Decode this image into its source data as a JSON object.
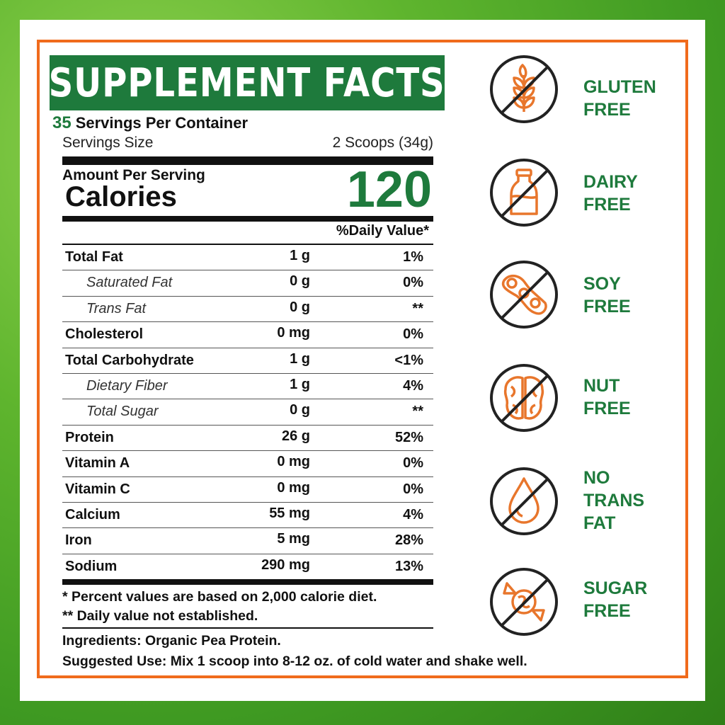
{
  "facts": {
    "title": "SUPPLEMENT FACTS",
    "servings_count": "35",
    "servings_per_container": "Servings Per Container",
    "serving_size_label": "Servings Size",
    "serving_size_value": "2 Scoops (34g)",
    "amount_per_serving": "Amount Per Serving",
    "calories_label": "Calories",
    "calories_value": "120",
    "daily_value_header": "%Daily Value*",
    "rows": [
      {
        "name": "Total Fat",
        "amount": "1 g",
        "dv": "1%",
        "sub": false
      },
      {
        "name": "Saturated Fat",
        "amount": "0 g",
        "dv": "0%",
        "sub": true
      },
      {
        "name": "Trans Fat",
        "amount": "0 g",
        "dv": "**",
        "sub": true
      },
      {
        "name": "Cholesterol",
        "amount": "0 mg",
        "dv": "0%",
        "sub": false
      },
      {
        "name": "Total Carbohydrate",
        "amount": "1 g",
        "dv": "<1%",
        "sub": false
      },
      {
        "name": "Dietary Fiber",
        "amount": "1 g",
        "dv": "4%",
        "sub": true
      },
      {
        "name": "Total Sugar",
        "amount": "0 g",
        "dv": "**",
        "sub": true
      },
      {
        "name": "Protein",
        "amount": "26 g",
        "dv": "52%",
        "sub": false
      },
      {
        "name": "Vitamin A",
        "amount": "0 mg",
        "dv": "0%",
        "sub": false
      },
      {
        "name": "Vitamin C",
        "amount": "0 mg",
        "dv": "0%",
        "sub": false
      },
      {
        "name": "Calcium",
        "amount": "55 mg",
        "dv": "4%",
        "sub": false
      },
      {
        "name": "Iron",
        "amount": "5 mg",
        "dv": "28%",
        "sub": false
      },
      {
        "name": "Sodium",
        "amount": "290 mg",
        "dv": "13%",
        "sub": false
      }
    ],
    "footnote_1": "* Percent values are based on 2,000 calorie diet.",
    "footnote_2": "** Daily value not established.",
    "ingredients": "Ingredients: Organic Pea Protein.",
    "suggested_use": "Suggested Use: Mix 1 scoop into 8-12 oz. of cold water and shake well."
  },
  "badges": [
    {
      "icon": "wheat-icon",
      "lines": [
        "GLUTEN",
        "FREE"
      ]
    },
    {
      "icon": "milk-bottle-icon",
      "lines": [
        "DAIRY",
        "FREE"
      ]
    },
    {
      "icon": "soybean-icon",
      "lines": [
        "SOY",
        "FREE"
      ]
    },
    {
      "icon": "walnut-icon",
      "lines": [
        "NUT",
        "FREE"
      ]
    },
    {
      "icon": "oil-drop-icon",
      "lines": [
        "NO",
        "TRANS",
        "FAT"
      ]
    },
    {
      "icon": "candy-icon",
      "lines": [
        "SUGAR",
        "FREE"
      ]
    }
  ],
  "colors": {
    "brand_green": "#1e7a3c",
    "accent_orange": "#f06b1c",
    "background_green": "#5fb52e"
  }
}
